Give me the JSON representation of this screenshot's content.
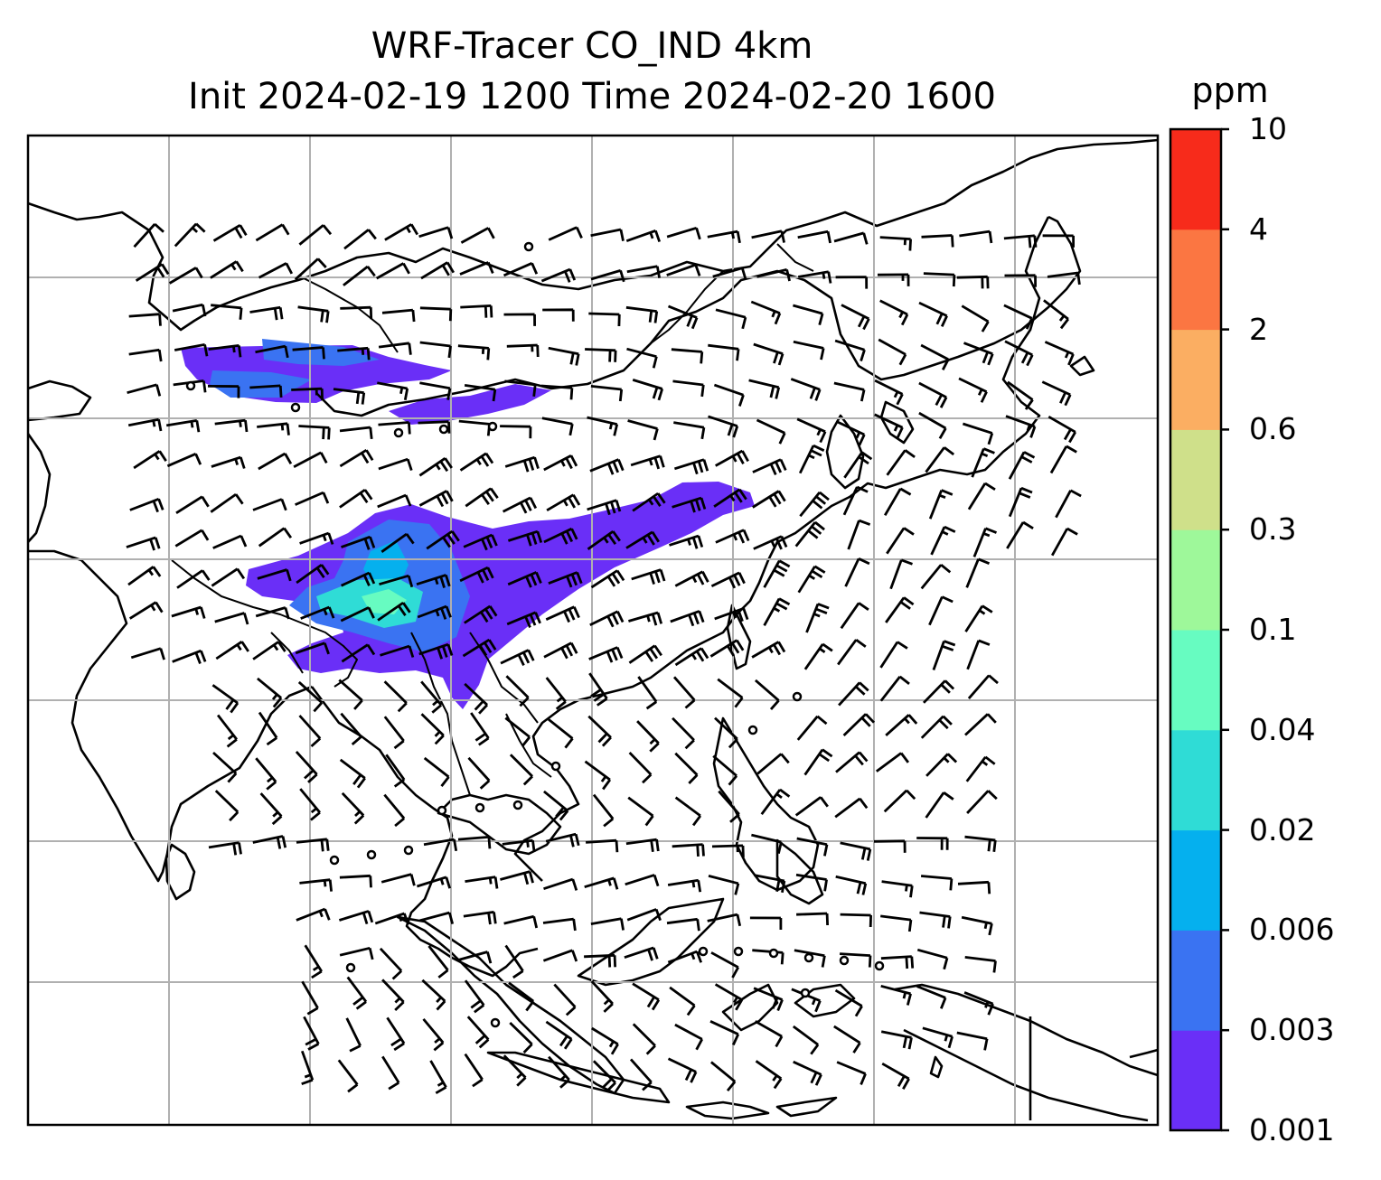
{
  "title": {
    "line1": "WRF-Tracer CO_IND 4km",
    "line2": "Init 2024-02-19 1200 Time 2024-02-20 1600"
  },
  "colorbar": {
    "unit": "ppm",
    "levels": [
      "0.001",
      "0.003",
      "0.006",
      "0.02",
      "0.04",
      "0.1",
      "0.3",
      "0.6",
      "2",
      "4",
      "10"
    ],
    "colors": [
      "#6a2ff7",
      "#3a73f2",
      "#05b0ee",
      "#2fdcd6",
      "#67fcc1",
      "#9ef89a",
      "#cfe08a",
      "#fbae62",
      "#fb7642",
      "#f72b1b"
    ]
  },
  "map": {
    "gridlines": true,
    "coastlines": true,
    "wind_barbs": true,
    "tracer_field_color": "#6a2ff7"
  }
}
